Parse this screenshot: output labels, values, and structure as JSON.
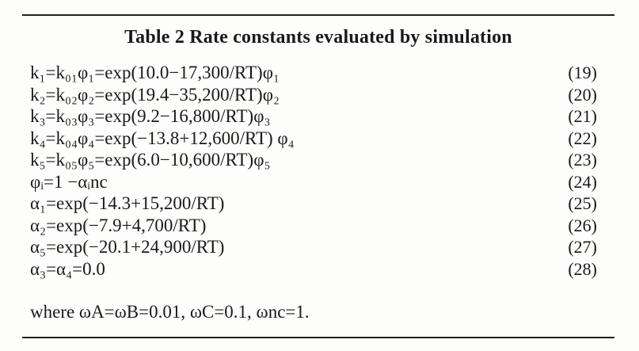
{
  "table": {
    "title": "Table 2  Rate constants evaluated by simulation",
    "equations": [
      {
        "text": "k₁=k₀₁φ₁=exp(10.0−17,300/RT)φ₁",
        "number": "(19)"
      },
      {
        "text": "k₂=k₀₂φ₂=exp(19.4−35,200/RT)φ₂",
        "number": "(20)"
      },
      {
        "text": "k₃=k₀₃φ₃=exp(9.2−16,800/RT)φ₃",
        "number": "(21)"
      },
      {
        "text": "k₄=k₀₄φ₄=exp(−13.8+12,600/RT) φ₄",
        "number": "(22)"
      },
      {
        "text": "k₅=k₀₅φ₅=exp(6.0−10,600/RT)φ₅",
        "number": "(23)"
      },
      {
        "text": "φᵢ=1 −αᵢnc",
        "number": "(24)"
      },
      {
        "text": "α₁=exp(−14.3+15,200/RT)",
        "number": "(25)"
      },
      {
        "text": "α₂=exp(−7.9+4,700/RT)",
        "number": "(26)"
      },
      {
        "text": "α₅=exp(−20.1+24,900/RT)",
        "number": "(27)"
      },
      {
        "text": "α₃=α₄=0.0",
        "number": "(28)"
      }
    ],
    "footnote": "where ωA=ωB=0.01, ωC=0.1, ωnc=1."
  }
}
